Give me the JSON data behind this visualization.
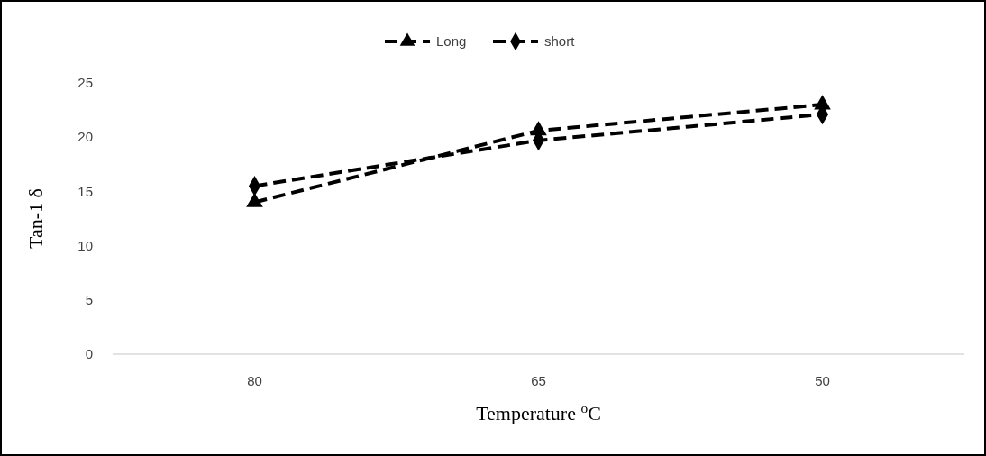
{
  "chart_data": {
    "type": "line",
    "xlabel": "Temperature $^{o}$C",
    "ylabel": "Tan-1 δ",
    "categories": [
      "80",
      "65",
      "50"
    ],
    "series": [
      {
        "name": "Long",
        "color": "#000000",
        "marker": "triangle",
        "values": [
          14.0,
          20.6,
          23.0
        ]
      },
      {
        "name": "short",
        "color": "#000000",
        "marker": "diamond",
        "values": [
          15.5,
          19.7,
          22.1
        ]
      }
    ],
    "ylim": [
      0,
      25
    ],
    "yticks": [
      0,
      5,
      10,
      15,
      20,
      25
    ],
    "grid": false,
    "legend": "top",
    "line_style": "dashed"
  }
}
